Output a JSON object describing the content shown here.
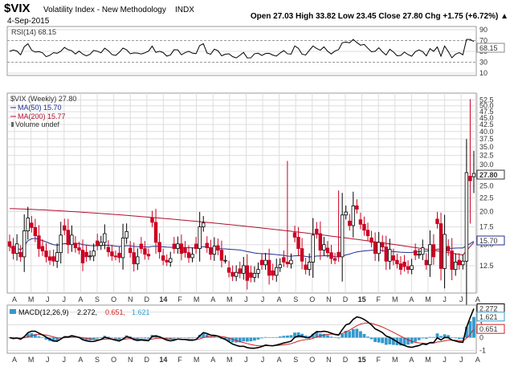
{
  "header": {
    "symbol": "$VIX",
    "name": "Volatility Index - New Methodology",
    "exchange": "INDX",
    "date": "4-Sep-2015",
    "quote": "Open 27.03  High 33.82  Low 23.45  Close 27.80  Chg +1.75 (+6.72%) ▲"
  },
  "rsi_panel": {
    "label": "RSI(14) 68.15",
    "current_label": "68.15",
    "ticks": [
      "90",
      "70",
      "50",
      "30",
      "10"
    ]
  },
  "price_panel": {
    "legend_main": "$VIX (Weekly) 27.80",
    "legend_ma50": "MA(50) 15.70",
    "legend_ma200": "MA(200) 15.77",
    "legend_volume": "Volume undef",
    "right_tag_close": "27.80",
    "right_tag_ma": "15.70",
    "ticks": [
      "52.5",
      "50.0",
      "47.5",
      "45.0",
      "42.5",
      "40.0",
      "37.5",
      "35.0",
      "32.5",
      "30.0",
      "25.0",
      "22.5",
      "20.0",
      "17.5",
      "15.0",
      "12.5"
    ]
  },
  "macd_panel": {
    "label_prefix": "MACD(12,26,9)",
    "macd_value": "2.272,",
    "signal_value": "0.651,",
    "hist_value": "1.621",
    "tags": [
      "2.272",
      "1.621",
      "0.651"
    ],
    "ticks": [
      "2",
      "1",
      "0",
      "-1"
    ]
  },
  "x_axis_labels": [
    "A",
    "M",
    "J",
    "J",
    "A",
    "S",
    "O",
    "N",
    "D",
    "14",
    "F",
    "M",
    "A",
    "M",
    "J",
    "J",
    "A",
    "S",
    "O",
    "N",
    "D",
    "15",
    "F",
    "M",
    "A",
    "M",
    "J",
    "J",
    "A"
  ],
  "colors": {
    "up": "#000000",
    "down": "#cc0022",
    "ma50": "#1f2f8f",
    "ma200": "#b01030",
    "histogram": "#3399cc",
    "macd_line": "#000000",
    "signal_line": "#cc2222",
    "grid": "#dddddd"
  },
  "chart_data": {
    "type": "candlestick",
    "title": "$VIX Volatility Index - New Methodology INDX (Weekly)",
    "x_labels": [
      "A",
      "M",
      "J",
      "J",
      "A",
      "S",
      "O",
      "N",
      "D",
      "14",
      "F",
      "M",
      "A",
      "M",
      "J",
      "J",
      "A",
      "S",
      "O",
      "N",
      "D",
      "15",
      "F",
      "M",
      "A",
      "M",
      "J",
      "J",
      "A"
    ],
    "last_bar": {
      "date": "4-Sep-2015",
      "open": 27.03,
      "high": 33.82,
      "low": 23.45,
      "close": 27.8,
      "change": 1.75,
      "change_pct": 6.72
    },
    "weekly_close": [
      14.8,
      13.9,
      15.1,
      13.5,
      16.9,
      18.9,
      17.4,
      16.2,
      14.5,
      14.2,
      13.5,
      13.1,
      13.0,
      14.0,
      16.3,
      17.0,
      15.0,
      16.3,
      14.6,
      14.3,
      12.8,
      13.5,
      13.6,
      14.2,
      14.9,
      15.3,
      16.5,
      14.1,
      13.6,
      13.5,
      13.4,
      15.9,
      16.8,
      14.0,
      12.7,
      13.5,
      14.5,
      13.8,
      13.6,
      18.2,
      15.3,
      14.1,
      13.1,
      12.9,
      13.3,
      14.5,
      15.1,
      13.9,
      14.0,
      13.4,
      13.8,
      14.5,
      17.5,
      18.1,
      14.6,
      13.8,
      14.8,
      14.3,
      13.1,
      13.1,
      11.8,
      11.4,
      11.8,
      11.7,
      12.5,
      11.0,
      11.3,
      11.7,
      12.1,
      12.6,
      13.1,
      11.5,
      11.5,
      12.3,
      12.6,
      12.9,
      12.7,
      13.1,
      16.0,
      14.5,
      13.0,
      12.1,
      12.9,
      16.3,
      16.5,
      14.3,
      15.0,
      14.0,
      13.3,
      13.1,
      13.5,
      19.4,
      19.9,
      17.7,
      21.0,
      20.4,
      17.9,
      17.0,
      16.2,
      15.3,
      13.9,
      15.3,
      14.7,
      13.0,
      14.4,
      13.1,
      12.7,
      12.1,
      12.4,
      12.1,
      12.5,
      13.7,
      13.8,
      14.6,
      12.6,
      15.0,
      13.5,
      18.0,
      12.2,
      16.4,
      14.2,
      12.1,
      12.9,
      12.6,
      13.0,
      28.0,
      26.1,
      27.8
    ],
    "ma50_last": 15.7,
    "ma200_last": 15.77,
    "rsi14_last": 68.15,
    "rsi_ylim": [
      10,
      90
    ],
    "price_ylim": [
      10,
      52.5
    ],
    "macd": {
      "params": "12,26,9",
      "macd": 2.272,
      "signal": 0.651,
      "histogram": 1.621,
      "ylim": [
        -1,
        2.272
      ]
    }
  }
}
